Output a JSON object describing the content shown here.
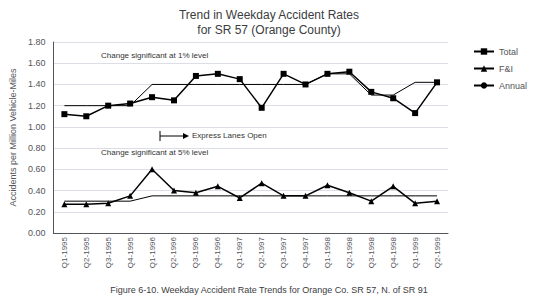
{
  "chart_data": {
    "type": "line",
    "title": "Trend in Weekday Accident Rates\nfor SR 57 (Orange County)",
    "ylabel": "Accidents per Million Vehicle-Miles",
    "caption": "Figure 6-10. Weekday Accident Rate Trends for Orange Co. SR 57, N. of SR 91",
    "categories": [
      "Q1-1995",
      "Q2-1995",
      "Q3-1995",
      "Q4-1995",
      "Q1-1996",
      "Q2-1996",
      "Q3-1996",
      "Q4-1996",
      "Q1-1997",
      "Q2-1997",
      "Q3-1997",
      "Q4-1997",
      "Q1-1998",
      "Q2-1998",
      "Q3-1998",
      "Q4-1998",
      "Q1-1999",
      "Q2-1999"
    ],
    "series": [
      {
        "name": "Total",
        "color": "#000000",
        "marker": "square",
        "values": [
          1.12,
          1.1,
          1.2,
          1.22,
          1.28,
          1.25,
          1.48,
          1.5,
          1.45,
          1.18,
          1.5,
          1.4,
          1.5,
          1.52,
          1.33,
          1.27,
          1.13,
          1.42
        ]
      },
      {
        "name": "F&I",
        "color": "#000000",
        "marker": "triangle",
        "values": [
          0.27,
          0.27,
          0.28,
          0.35,
          0.6,
          0.4,
          0.38,
          0.44,
          0.33,
          0.47,
          0.35,
          0.35,
          0.45,
          0.38,
          0.3,
          0.44,
          0.28,
          0.3
        ]
      },
      {
        "name": "Annual",
        "color": "#000000",
        "marker": "none",
        "values": [
          1.2,
          1.2,
          1.2,
          1.2,
          1.4,
          1.4,
          1.4,
          1.4,
          1.4,
          1.4,
          1.4,
          1.4,
          1.5,
          1.5,
          1.3,
          1.3,
          1.42,
          1.42
        ]
      },
      {
        "name": "Annual",
        "color": "#000000",
        "marker": "none",
        "values": [
          0.3,
          0.3,
          0.3,
          0.3,
          0.35,
          0.35,
          0.35,
          0.35,
          0.35,
          0.35,
          0.35,
          0.35,
          0.35,
          0.35,
          0.35,
          0.35,
          0.35,
          0.35
        ]
      }
    ],
    "ylim": [
      0.0,
      1.8
    ],
    "yticks": [
      {
        "value": 0.0,
        "label": "0.00"
      },
      {
        "value": 0.2,
        "label": "0.20"
      },
      {
        "value": 0.4,
        "label": "0.40"
      },
      {
        "value": 0.6,
        "label": "0.60"
      },
      {
        "value": 0.8,
        "label": "0.80"
      },
      {
        "value": 1.0,
        "label": "1.00"
      },
      {
        "value": 1.2,
        "label": "1.20"
      },
      {
        "value": 1.4,
        "label": "1.40"
      },
      {
        "value": 1.6,
        "label": "1.60"
      },
      {
        "value": 1.8,
        "label": "1.80"
      }
    ],
    "grid": true,
    "legend": "right",
    "annotations": [
      "Change significant at 1% level",
      "Express Lanes Open",
      "Change significant at 5% level"
    ]
  }
}
